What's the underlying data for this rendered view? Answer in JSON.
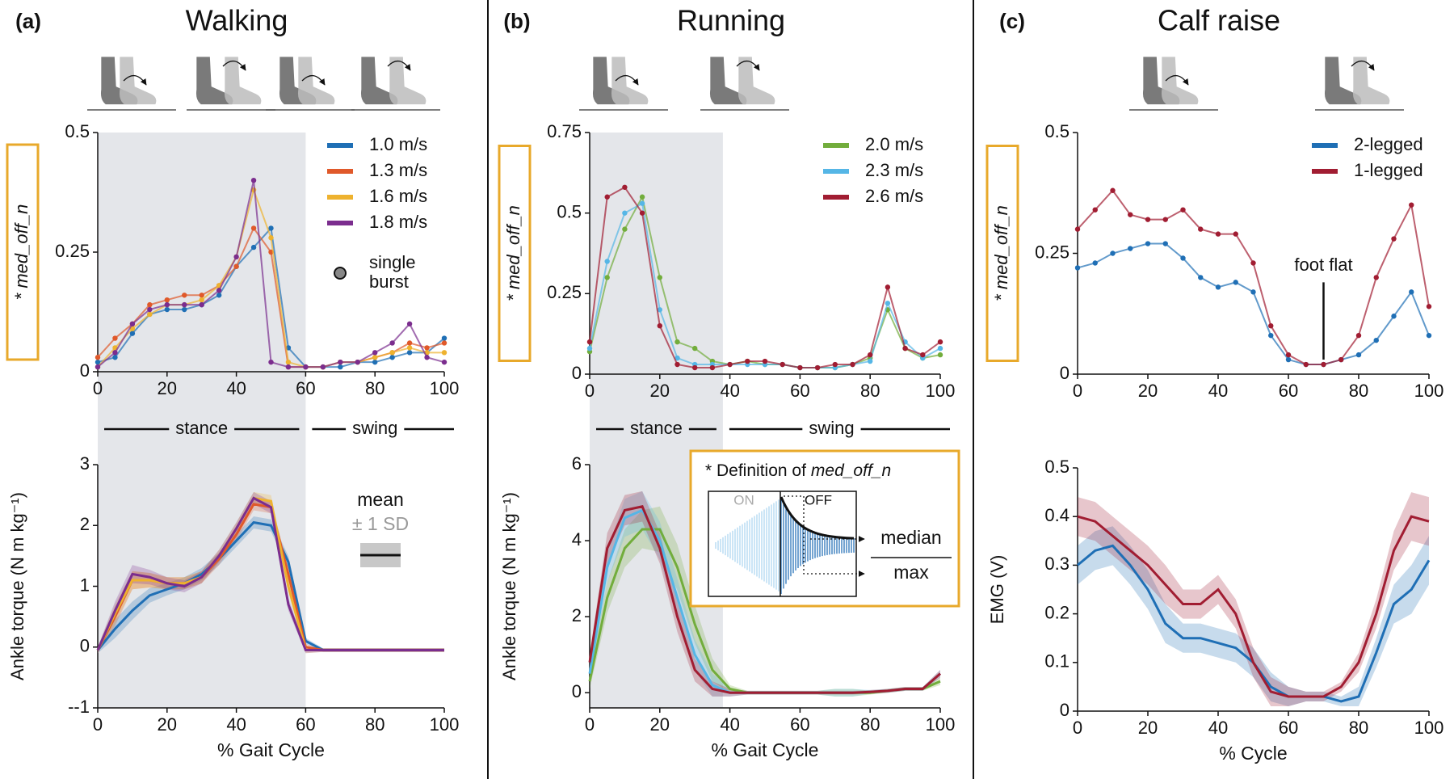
{
  "chart_data": [
    {
      "type": "line",
      "panel": "(a)",
      "title": "Walking",
      "ylabel": "* med_off_n",
      "ylabel_box": true,
      "box_color": "#e8a92b",
      "x": [
        0,
        5,
        10,
        15,
        20,
        25,
        30,
        35,
        40,
        45,
        50,
        55,
        60,
        65,
        70,
        75,
        80,
        85,
        90,
        95,
        100
      ],
      "xlim": [
        0,
        100
      ],
      "xticks": [
        0,
        20,
        40,
        60,
        80,
        100
      ],
      "ylim": [
        0,
        0.5
      ],
      "yticks": [
        0,
        0.25,
        0.5
      ],
      "markers": true,
      "legend": "upper right",
      "marker_legend": [
        "single",
        "burst"
      ],
      "shade": [
        0,
        60
      ],
      "phases": [
        {
          "label": "stance",
          "range": [
            0,
            60
          ]
        },
        {
          "label": "swing",
          "range": [
            60,
            100
          ]
        }
      ],
      "series": [
        {
          "name": "1.0 m/s",
          "color": "#1f6fb5",
          "values": [
            0.02,
            0.03,
            0.08,
            0.12,
            0.13,
            0.13,
            0.14,
            0.16,
            0.22,
            0.26,
            0.3,
            0.05,
            0.01,
            0.01,
            0.01,
            0.02,
            0.02,
            0.03,
            0.04,
            0.04,
            0.07
          ]
        },
        {
          "name": "1.3 m/s",
          "color": "#e0592a",
          "values": [
            0.03,
            0.07,
            0.1,
            0.14,
            0.15,
            0.16,
            0.16,
            0.18,
            0.22,
            0.3,
            0.25,
            0.01,
            0.01,
            0.01,
            0.02,
            0.02,
            0.03,
            0.04,
            0.06,
            0.05,
            0.06
          ]
        },
        {
          "name": "1.6 m/s",
          "color": "#eeb22f",
          "values": [
            0.01,
            0.05,
            0.09,
            0.12,
            0.14,
            0.14,
            0.15,
            0.18,
            0.24,
            0.38,
            0.28,
            0.02,
            0.01,
            0.01,
            0.02,
            0.02,
            0.03,
            0.04,
            0.05,
            0.04,
            0.04
          ]
        },
        {
          "name": "1.8 m/s",
          "color": "#7b2d8e",
          "values": [
            0.01,
            0.04,
            0.1,
            0.13,
            0.14,
            0.14,
            0.14,
            0.17,
            0.24,
            0.4,
            0.02,
            0.01,
            0.01,
            0.01,
            0.02,
            0.02,
            0.04,
            0.06,
            0.1,
            0.03,
            0.02
          ]
        }
      ]
    },
    {
      "type": "line",
      "ylabel": "Ankle torque (N m kg⁻¹)",
      "xlabel": "% Gait Cycle",
      "x": [
        0,
        5,
        10,
        15,
        20,
        25,
        30,
        35,
        40,
        45,
        50,
        55,
        60,
        65,
        70,
        75,
        80,
        85,
        90,
        95,
        100
      ],
      "xlim": [
        0,
        100
      ],
      "xticks": [
        0,
        20,
        40,
        60,
        80,
        100
      ],
      "ylim": [
        -1,
        3
      ],
      "yticks": [
        {
          "value": -1,
          "label": "--1"
        },
        0,
        1,
        2,
        3
      ],
      "band_legend": [
        "mean",
        "± 1 SD"
      ],
      "series": [
        {
          "color": "#1f6fb5",
          "values": [
            -0.05,
            0.3,
            0.6,
            0.85,
            0.95,
            1.05,
            1.2,
            1.45,
            1.75,
            2.05,
            2.0,
            1.4,
            0.1,
            -0.05,
            -0.05,
            -0.05,
            -0.05,
            -0.05,
            -0.05,
            -0.05,
            -0.05
          ],
          "sd": [
            0.05,
            0.15,
            0.15,
            0.12,
            0.1,
            0.1,
            0.1,
            0.1,
            0.1,
            0.1,
            0.1,
            0.1,
            0.05,
            0.03,
            0.03,
            0.03,
            0.03,
            0.03,
            0.03,
            0.03,
            0.03
          ]
        },
        {
          "color": "#e0592a",
          "values": [
            -0.05,
            0.5,
            1.1,
            1.1,
            1.05,
            1.05,
            1.15,
            1.45,
            1.85,
            2.35,
            2.3,
            1.2,
            0.0,
            -0.05,
            -0.05,
            -0.05,
            -0.05,
            -0.05,
            -0.05,
            -0.05,
            -0.05
          ],
          "sd": [
            0.05,
            0.15,
            0.15,
            0.12,
            0.1,
            0.1,
            0.1,
            0.1,
            0.1,
            0.1,
            0.1,
            0.1,
            0.05,
            0.03,
            0.03,
            0.03,
            0.03,
            0.03,
            0.03,
            0.03,
            0.03
          ]
        },
        {
          "color": "#eeb22f",
          "values": [
            -0.05,
            0.55,
            1.1,
            1.1,
            1.05,
            1.05,
            1.15,
            1.5,
            1.95,
            2.45,
            2.4,
            1.0,
            -0.05,
            -0.05,
            -0.05,
            -0.05,
            -0.05,
            -0.05,
            -0.05,
            -0.05,
            -0.05
          ],
          "sd": [
            0.05,
            0.15,
            0.15,
            0.12,
            0.1,
            0.1,
            0.1,
            0.1,
            0.1,
            0.1,
            0.1,
            0.1,
            0.05,
            0.03,
            0.03,
            0.03,
            0.03,
            0.03,
            0.03,
            0.03,
            0.03
          ]
        },
        {
          "color": "#7b2d8e",
          "values": [
            -0.05,
            0.6,
            1.2,
            1.15,
            1.05,
            1.0,
            1.15,
            1.5,
            1.95,
            2.45,
            2.3,
            0.7,
            -0.05,
            -0.05,
            -0.05,
            -0.05,
            -0.05,
            -0.05,
            -0.05,
            -0.05,
            -0.05
          ],
          "sd": [
            0.05,
            0.15,
            0.15,
            0.12,
            0.1,
            0.1,
            0.1,
            0.1,
            0.1,
            0.1,
            0.1,
            0.1,
            0.05,
            0.03,
            0.03,
            0.03,
            0.03,
            0.03,
            0.03,
            0.03,
            0.03
          ]
        }
      ]
    },
    {
      "type": "line",
      "panel": "(b)",
      "title": "Running",
      "ylabel": "* med_off_n",
      "ylabel_box": true,
      "box_color": "#e8a92b",
      "x": [
        0,
        5,
        10,
        15,
        20,
        25,
        30,
        35,
        40,
        45,
        50,
        55,
        60,
        65,
        70,
        75,
        80,
        85,
        90,
        95,
        100
      ],
      "xlim": [
        0,
        100
      ],
      "xticks": [
        0,
        20,
        40,
        60,
        80,
        100
      ],
      "ylim": [
        0,
        0.75
      ],
      "yticks": [
        0,
        0.25,
        0.5,
        0.75
      ],
      "markers": true,
      "legend": "upper right",
      "shade": [
        0,
        38
      ],
      "phases": [
        {
          "label": "stance",
          "range": [
            0,
            38
          ]
        },
        {
          "label": "swing",
          "range": [
            38,
            100
          ]
        }
      ],
      "series": [
        {
          "name": "2.0 m/s",
          "color": "#72ad3c",
          "values": [
            0.07,
            0.3,
            0.45,
            0.55,
            0.3,
            0.1,
            0.08,
            0.04,
            0.03,
            0.04,
            0.03,
            0.03,
            0.02,
            0.02,
            0.02,
            0.03,
            0.05,
            0.2,
            0.08,
            0.05,
            0.06
          ]
        },
        {
          "name": "2.3 m/s",
          "color": "#55b6e6",
          "values": [
            0.08,
            0.35,
            0.5,
            0.53,
            0.2,
            0.05,
            0.03,
            0.03,
            0.03,
            0.03,
            0.03,
            0.03,
            0.02,
            0.02,
            0.02,
            0.03,
            0.04,
            0.22,
            0.1,
            0.05,
            0.08
          ]
        },
        {
          "name": "2.6 m/s",
          "color": "#a11d32",
          "values": [
            0.1,
            0.55,
            0.58,
            0.5,
            0.15,
            0.03,
            0.02,
            0.02,
            0.03,
            0.04,
            0.04,
            0.03,
            0.02,
            0.02,
            0.03,
            0.03,
            0.06,
            0.27,
            0.08,
            0.06,
            0.1
          ]
        }
      ]
    },
    {
      "type": "line",
      "ylabel": "Ankle torque (N m kg⁻¹)",
      "xlabel": "% Gait Cycle",
      "x": [
        0,
        5,
        10,
        15,
        20,
        25,
        30,
        35,
        40,
        45,
        50,
        55,
        60,
        65,
        70,
        75,
        80,
        85,
        90,
        95,
        100
      ],
      "xlim": [
        0,
        100
      ],
      "xticks": [
        0,
        20,
        40,
        60,
        80,
        100
      ],
      "ylim": [
        -0.4,
        6
      ],
      "yticks": [
        0,
        2,
        4,
        6
      ],
      "inset": {
        "title": "* Definition of",
        "title_term": "med_off_n",
        "on": "ON",
        "off": "OFF",
        "numerator": "median",
        "denominator": "max"
      },
      "series": [
        {
          "color": "#72ad3c",
          "values": [
            0.3,
            2.5,
            3.8,
            4.3,
            4.3,
            3.3,
            1.8,
            0.6,
            0.1,
            0,
            0,
            0,
            0,
            0,
            0,
            0,
            0,
            0.05,
            0.1,
            0.1,
            0.3
          ],
          "sd": [
            0.2,
            0.4,
            0.5,
            0.5,
            0.6,
            0.6,
            0.5,
            0.3,
            0.1,
            0.05,
            0.05,
            0.05,
            0.05,
            0.05,
            0.1,
            0.1,
            0.05,
            0.05,
            0.05,
            0.05,
            0.1
          ]
        },
        {
          "color": "#55b6e6",
          "values": [
            0.5,
            3.3,
            4.6,
            4.8,
            4.0,
            2.5,
            1.0,
            0.2,
            0,
            0,
            0,
            0,
            0,
            0,
            0,
            0,
            0.02,
            0.05,
            0.1,
            0.1,
            0.5
          ],
          "sd": [
            0.2,
            0.4,
            0.5,
            0.5,
            0.5,
            0.5,
            0.4,
            0.3,
            0.1,
            0.05,
            0.05,
            0.05,
            0.05,
            0.05,
            0.1,
            0.1,
            0.05,
            0.05,
            0.05,
            0.05,
            0.1
          ]
        },
        {
          "color": "#a11d32",
          "values": [
            0.8,
            3.8,
            4.8,
            4.9,
            3.8,
            2.0,
            0.6,
            0.1,
            0,
            0,
            0,
            0,
            0,
            0,
            0,
            0,
            0.02,
            0.05,
            0.1,
            0.1,
            0.5
          ],
          "sd": [
            0.2,
            0.4,
            0.4,
            0.4,
            0.4,
            0.4,
            0.3,
            0.2,
            0.1,
            0.05,
            0.05,
            0.05,
            0.05,
            0.05,
            0.05,
            0.05,
            0.05,
            0.05,
            0.05,
            0.05,
            0.1
          ]
        }
      ]
    },
    {
      "type": "line",
      "panel": "(c)",
      "title": "Calf raise",
      "ylabel": "* med_off_n",
      "ylabel_box": true,
      "box_color": "#e8a92b",
      "x": [
        0,
        5,
        10,
        15,
        20,
        25,
        30,
        35,
        40,
        45,
        50,
        55,
        60,
        65,
        70,
        75,
        80,
        85,
        90,
        95,
        100
      ],
      "xlim": [
        0,
        100
      ],
      "xticks": [
        0,
        20,
        40,
        60,
        80,
        100
      ],
      "ylim": [
        0,
        0.5
      ],
      "yticks": [
        0,
        0.25,
        0.5
      ],
      "markers": true,
      "legend": "upper right",
      "annotations": [
        {
          "text": "foot flat",
          "x": 70,
          "y0": 0.03,
          "y1": 0.19
        }
      ],
      "series": [
        {
          "name": "2-legged",
          "color": "#1f6fb5",
          "values": [
            0.22,
            0.23,
            0.25,
            0.26,
            0.27,
            0.27,
            0.24,
            0.2,
            0.18,
            0.19,
            0.17,
            0.08,
            0.03,
            0.02,
            0.02,
            0.03,
            0.04,
            0.07,
            0.12,
            0.17,
            0.08
          ]
        },
        {
          "name": "1-legged",
          "color": "#a11d32",
          "values": [
            0.3,
            0.34,
            0.38,
            0.33,
            0.32,
            0.32,
            0.34,
            0.3,
            0.29,
            0.29,
            0.23,
            0.1,
            0.04,
            0.02,
            0.02,
            0.03,
            0.08,
            0.2,
            0.28,
            0.35,
            0.14
          ]
        }
      ]
    },
    {
      "type": "line",
      "ylabel": "EMG (V)",
      "xlabel": "% Cycle",
      "x": [
        0,
        5,
        10,
        15,
        20,
        25,
        30,
        35,
        40,
        45,
        50,
        55,
        60,
        65,
        70,
        75,
        80,
        85,
        90,
        95,
        100
      ],
      "xlim": [
        0,
        100
      ],
      "xticks": [
        0,
        20,
        40,
        60,
        80,
        100
      ],
      "ylim": [
        0,
        0.5
      ],
      "yticks": [
        0,
        0.1,
        0.2,
        0.3,
        0.4,
        0.5
      ],
      "series": [
        {
          "color": "#1f6fb5",
          "values": [
            0.3,
            0.33,
            0.34,
            0.3,
            0.25,
            0.18,
            0.15,
            0.15,
            0.14,
            0.13,
            0.1,
            0.05,
            0.03,
            0.03,
            0.03,
            0.02,
            0.03,
            0.12,
            0.22,
            0.25,
            0.31
          ],
          "sd": [
            0.04,
            0.04,
            0.04,
            0.04,
            0.04,
            0.04,
            0.03,
            0.03,
            0.03,
            0.03,
            0.03,
            0.03,
            0.02,
            0.01,
            0.01,
            0.01,
            0.02,
            0.03,
            0.04,
            0.05,
            0.05
          ]
        },
        {
          "color": "#a11d32",
          "values": [
            0.4,
            0.39,
            0.36,
            0.33,
            0.3,
            0.26,
            0.22,
            0.22,
            0.25,
            0.2,
            0.1,
            0.04,
            0.03,
            0.03,
            0.03,
            0.05,
            0.1,
            0.2,
            0.33,
            0.4,
            0.39
          ],
          "sd": [
            0.04,
            0.04,
            0.04,
            0.04,
            0.04,
            0.04,
            0.03,
            0.03,
            0.03,
            0.03,
            0.03,
            0.03,
            0.02,
            0.01,
            0.01,
            0.01,
            0.02,
            0.03,
            0.04,
            0.05,
            0.05
          ]
        }
      ]
    }
  ]
}
